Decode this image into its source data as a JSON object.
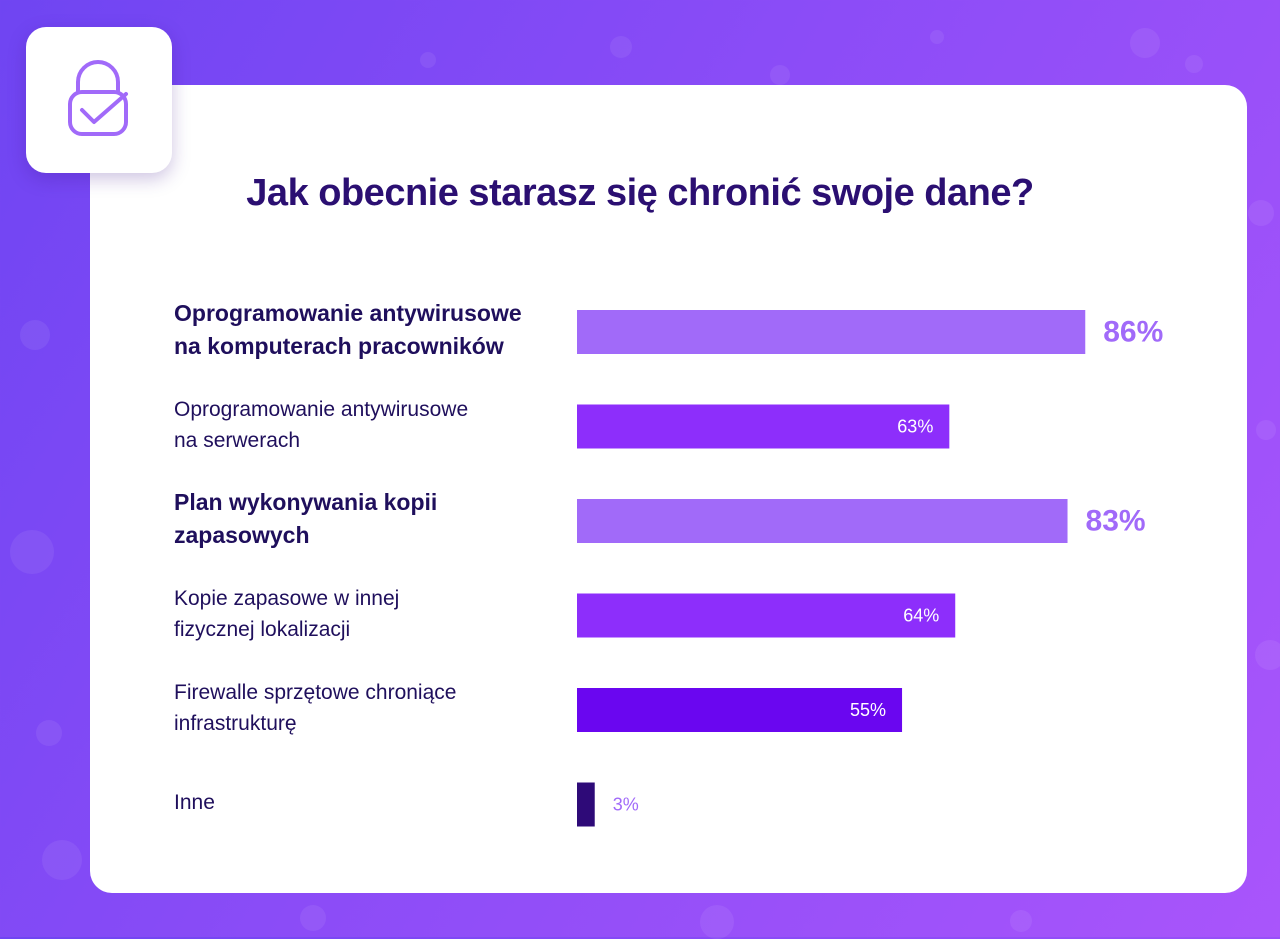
{
  "title": "Jak obecnie starasz się chronić swoje dane?",
  "chart_data": {
    "type": "bar",
    "orientation": "horizontal",
    "title": "Jak obecnie starasz się chronić swoje dane?",
    "categories": [
      "Oprogramowanie antywirusowe\nna komputerach pracowników",
      "Oprogramowanie antywirusowe\nna serwerach",
      "Plan wykonywania kopii\nzapasowych",
      "Kopie zapasowe w innej\nfizycznej lokalizacji",
      "Firewalle sprzętowe chroniące\ninfrastrukturę",
      "Inne"
    ],
    "values": [
      86,
      63,
      83,
      64,
      55,
      3
    ],
    "value_labels": [
      "86%",
      "63%",
      "83%",
      "64%",
      "55%",
      "3%"
    ],
    "highlighted": [
      true,
      false,
      true,
      false,
      false,
      false
    ],
    "bar_colors": [
      "#a16af9",
      "#8d2efb",
      "#a16af9",
      "#8d2efb",
      "#6a06f0",
      "#2e0a78"
    ],
    "xlim": [
      0,
      100
    ],
    "grid": false,
    "legend": "none"
  },
  "colors": {
    "title": "#2b0f72",
    "label": "#1f0f5c",
    "highlight_value": "#a16af9",
    "inside_value": "#ffffff",
    "small_value": "#a16af9"
  },
  "icon": "lock-check-icon"
}
